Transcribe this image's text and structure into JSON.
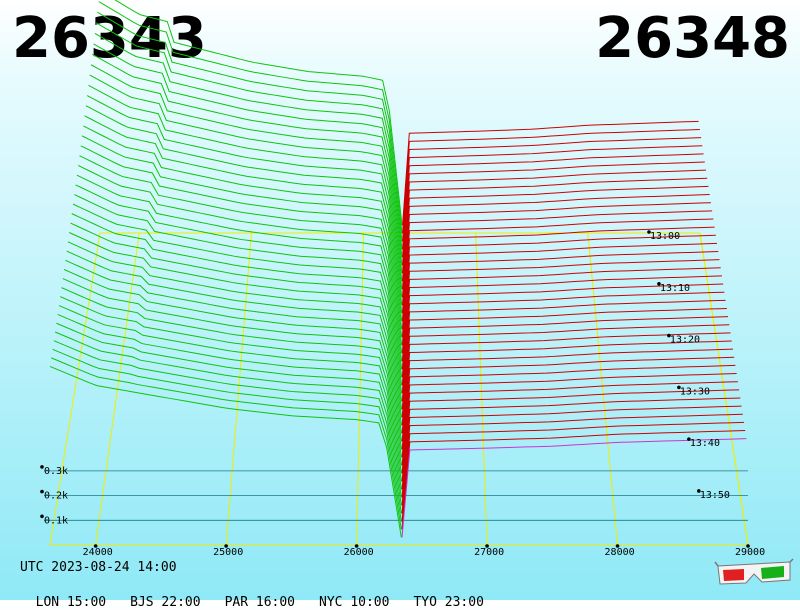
{
  "bid_price": "26343",
  "ask_price": "26348",
  "utc_label": "UTC 2023-08-24 14:00",
  "timezones": [
    {
      "label": "LON 15:00"
    },
    {
      "label": "BJS 22:00"
    },
    {
      "label": "PAR 16:00"
    },
    {
      "label": "NYC 10:00"
    },
    {
      "label": "TYO 23:00"
    }
  ],
  "colors": {
    "bid": "#0ec40e",
    "ask": "#cc0000",
    "grid": "#eeee00",
    "baseline": "#cc33cc"
  },
  "icon": "3d-glasses-icon",
  "chart_data": {
    "type": "area",
    "x_ticks": [
      "24000",
      "25000",
      "26000",
      "27000",
      "28000",
      "29000"
    ],
    "x_range": [
      23650,
      29000
    ],
    "depth_ticks": [
      "0.1k",
      "0.2k",
      "0.3k"
    ],
    "time_ticks": [
      "13:00",
      "13:10",
      "13:20",
      "13:30",
      "13:40",
      "13:50"
    ],
    "mid_price": 26345,
    "bid_profile": {
      "price": [
        23650,
        24000,
        24500,
        25000,
        25500,
        26000,
        26200,
        26343
      ],
      "depth": [
        0.47,
        0.42,
        0.39,
        0.36,
        0.34,
        0.33,
        0.32,
        0.02
      ]
    },
    "ask_profile": {
      "price": [
        26348,
        26400,
        27000,
        27500,
        28000,
        28500,
        29000
      ],
      "depth": [
        0.02,
        0.25,
        0.255,
        0.26,
        0.27,
        0.275,
        0.28
      ]
    },
    "snapshots": 40,
    "grid": true
  }
}
